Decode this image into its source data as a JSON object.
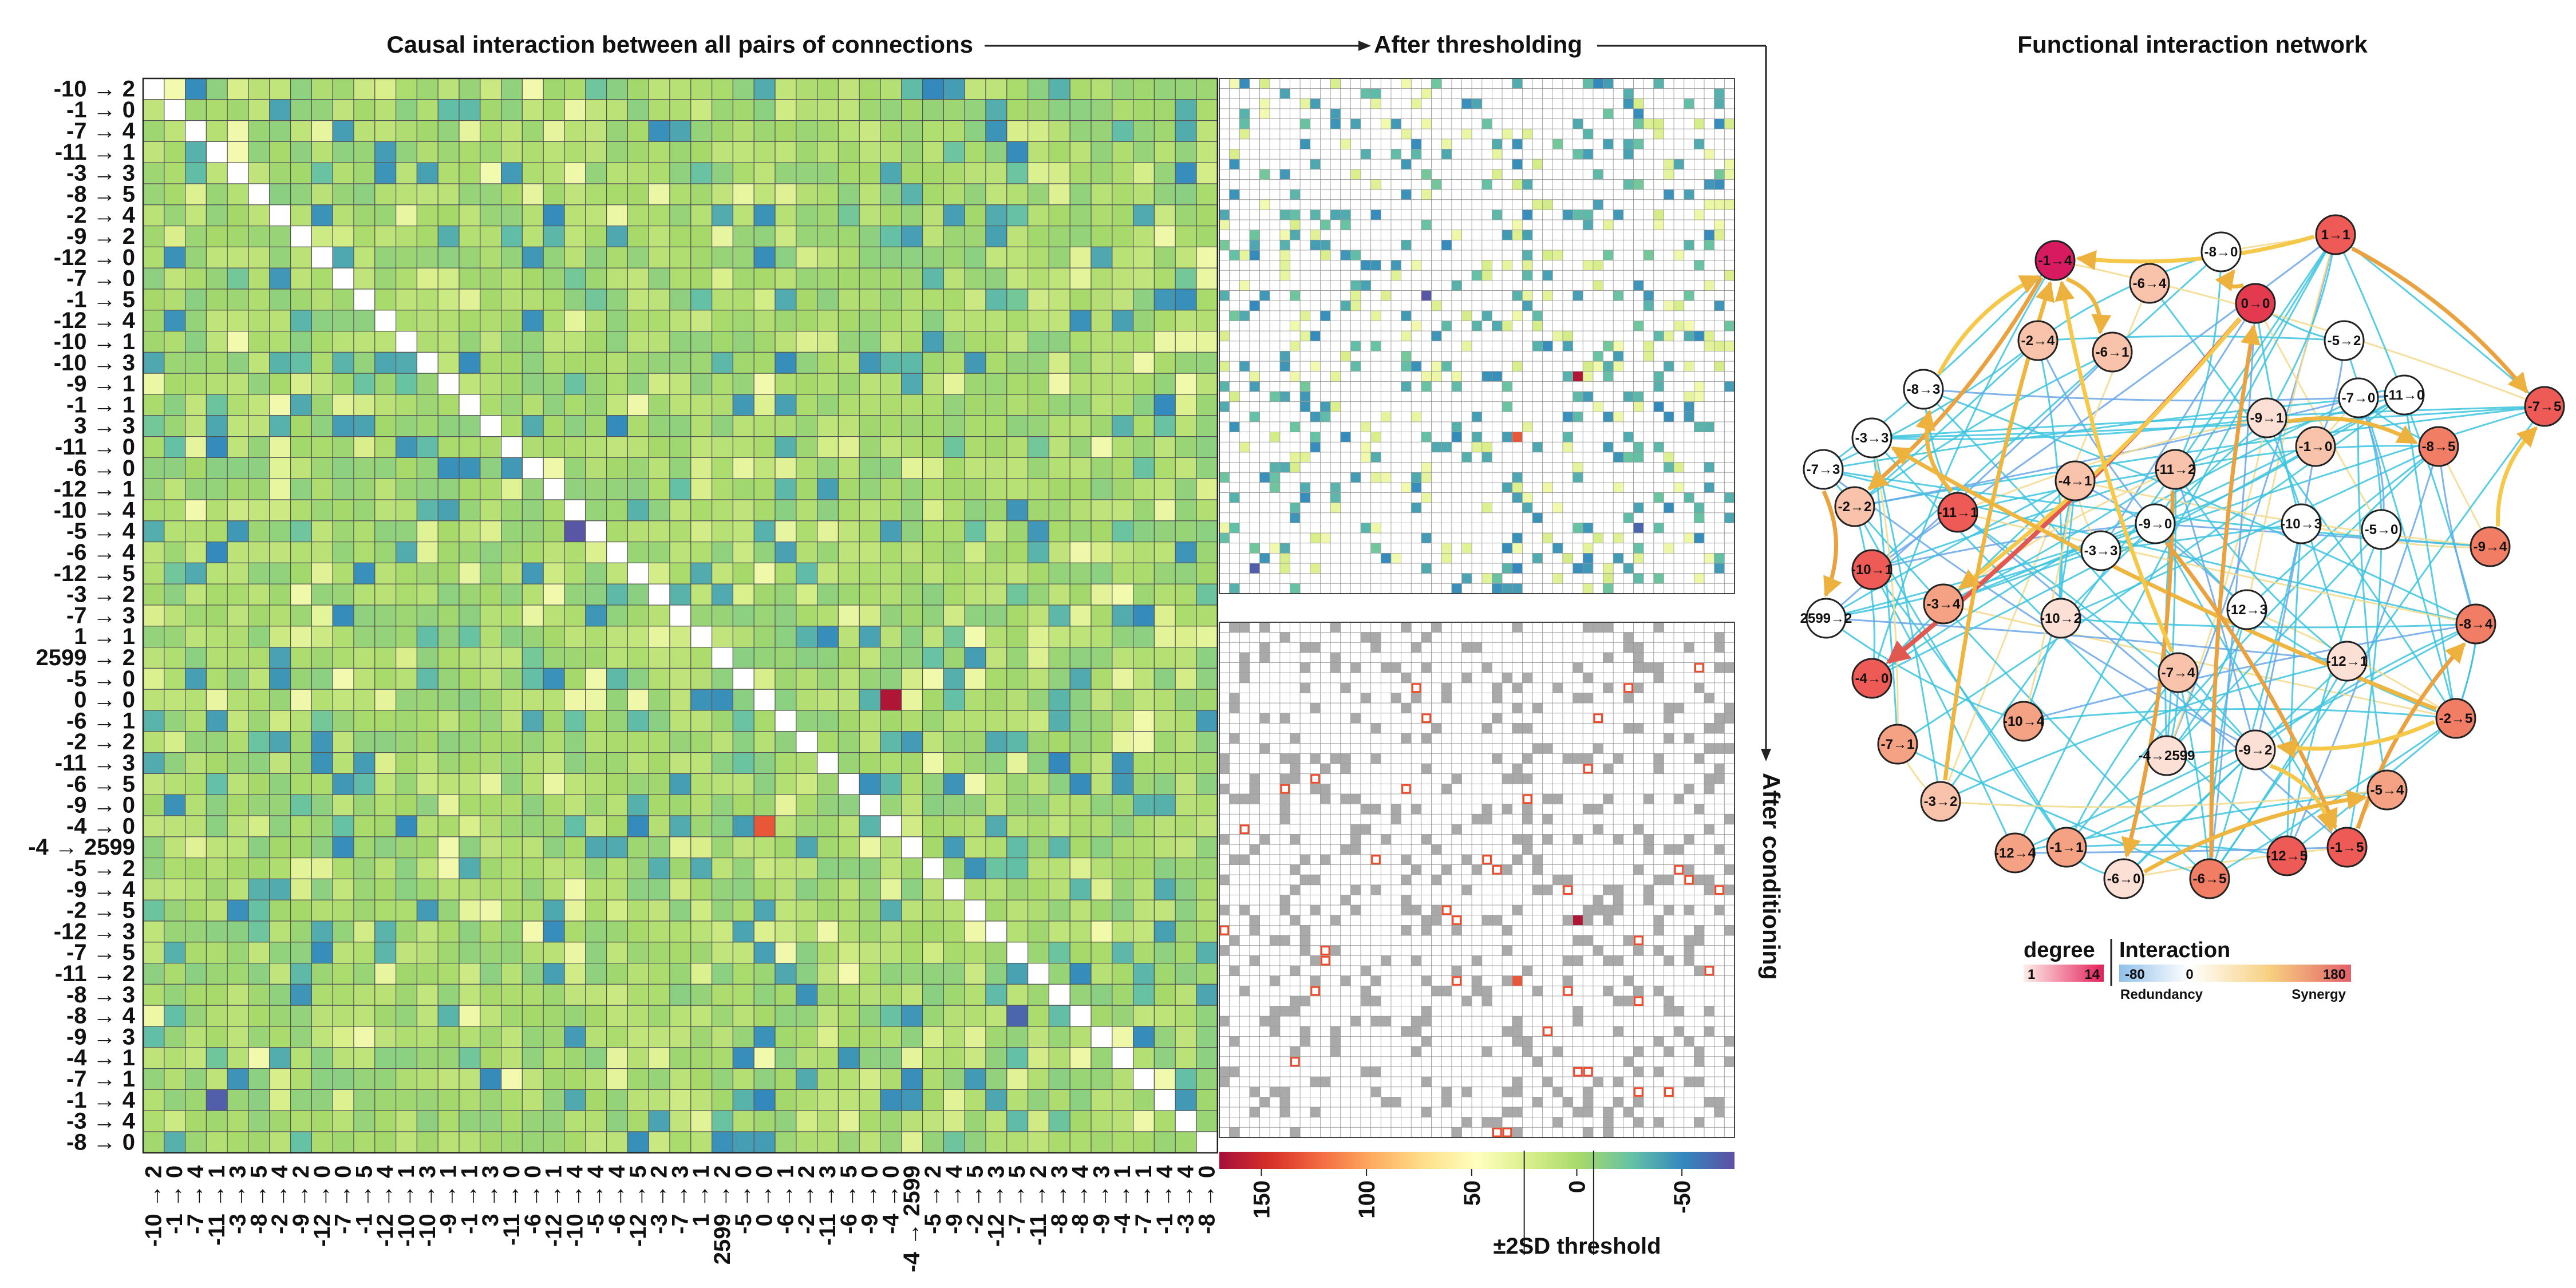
{
  "titles": {
    "matrix": "Causal interaction between all pairs of connections",
    "thresholded": "After thresholding",
    "network": "Functional interaction network",
    "conditioned": "After conditioning"
  },
  "connections": [
    "-10 → 2",
    "-1 → 0",
    "-7 → 4",
    "-11 → 1",
    "-3 → 3",
    "-8 → 5",
    "-2 → 4",
    "-9 → 2",
    "-12 → 0",
    "-7 → 0",
    "-1 → 5",
    "-12 → 4",
    "-10 → 1",
    "-10 → 3",
    "-9 → 1",
    "-1 → 1",
    "3 → 3",
    "-11 → 0",
    "-6 → 0",
    "-12 → 1",
    "-10 → 4",
    "-5 → 4",
    "-6 → 4",
    "-12 → 5",
    "-3 → 2",
    "-7 → 3",
    "1 → 1",
    "2599 → 2",
    "-5 → 0",
    "0 → 0",
    "-6 → 1",
    "-2 → 2",
    "-11 → 3",
    "-6 → 5",
    "-9 → 0",
    "-4 → 0",
    "-4 → 2599",
    "-5 → 2",
    "-9 → 4",
    "-2 → 5",
    "-12 → 3",
    "-7 → 5",
    "-11 → 2",
    "-8 → 3",
    "-8 → 4",
    "-9 → 3",
    "-4 → 1",
    "-7 → 1",
    "-1 → 4",
    "-3 → 4",
    "-8 → 0"
  ],
  "colorbar": {
    "ticks": [
      "150",
      "100",
      "50",
      "0",
      "-50"
    ],
    "threshold_label": "±2SD threshold",
    "colors": [
      "#a50f3a",
      "#d73027",
      "#f46d43",
      "#fdae61",
      "#fee08b",
      "#ffffbf",
      "#d9ef8b",
      "#a6d96a",
      "#66c2a5",
      "#3288bd",
      "#5e4fa2"
    ]
  },
  "legend": {
    "degree_title": "degree",
    "degree_min": "1",
    "degree_max": "14",
    "interaction_title": "Interaction",
    "interaction_min": "-80",
    "interaction_zero": "0",
    "interaction_max": "180",
    "redundancy": "Redundancy",
    "synergy": "Synergy"
  },
  "nodes": [
    "-1→4",
    "0→0",
    "1→1",
    "-8→0",
    "-6→4",
    "-6→1",
    "-2→4",
    "-5→2",
    "-7→0",
    "-11→0",
    "-8→3",
    "-7→5",
    "-3→3",
    "-9→1",
    "-1→0",
    "-8→5",
    "-7→3",
    "-2→2",
    "-11→1",
    "-4→1",
    "-11→2",
    "-9→0",
    "-10→3",
    "-5→0",
    "-9→4",
    "-10→1",
    "-3→3",
    "-3→4",
    "-10→2",
    "-12→3",
    "2599→2",
    "-8→4",
    "-4→0",
    "-7→4",
    "-12→1",
    "-10→4",
    "-7→1",
    "-4→2599",
    "-9→2",
    "-2→5",
    "-5→4",
    "-3→2",
    "-12→4",
    "-1→1",
    "-6→0",
    "-6→5",
    "-12→5",
    "-1→5"
  ]
}
